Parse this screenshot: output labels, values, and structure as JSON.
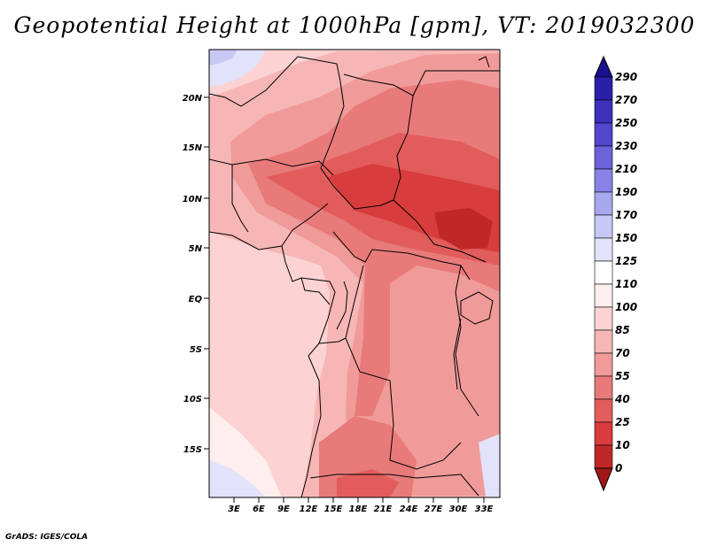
{
  "title": "Geopotential Height at 1000hPa [gpm], VT: 2019032300",
  "credit": "GrADS: IGES/COLA",
  "map": {
    "lat_ticks": [
      "20N",
      "15N",
      "10N",
      "5N",
      "EQ",
      "5S",
      "10S",
      "15S"
    ],
    "lon_ticks": [
      "3E",
      "6E",
      "9E",
      "12E",
      "15E",
      "18E",
      "21E",
      "24E",
      "27E",
      "30E",
      "33E"
    ]
  },
  "colorbar": {
    "levels": [
      "0",
      "10",
      "25",
      "40",
      "55",
      "70",
      "85",
      "100",
      "110",
      "125",
      "150",
      "170",
      "190",
      "210",
      "230",
      "250",
      "270",
      "290"
    ],
    "colors": [
      "#a01818",
      "#c02828",
      "#d83c3c",
      "#e25c5c",
      "#e87a7a",
      "#f09a9a",
      "#f6b6b6",
      "#fcd2d2",
      "#ffeeee",
      "#ffffff",
      "#e2e2fa",
      "#c8c8f4",
      "#a8a8ee",
      "#8a82e6",
      "#6c62da",
      "#5246cc",
      "#3c30bc",
      "#2a20a8",
      "#1a1090"
    ]
  }
}
